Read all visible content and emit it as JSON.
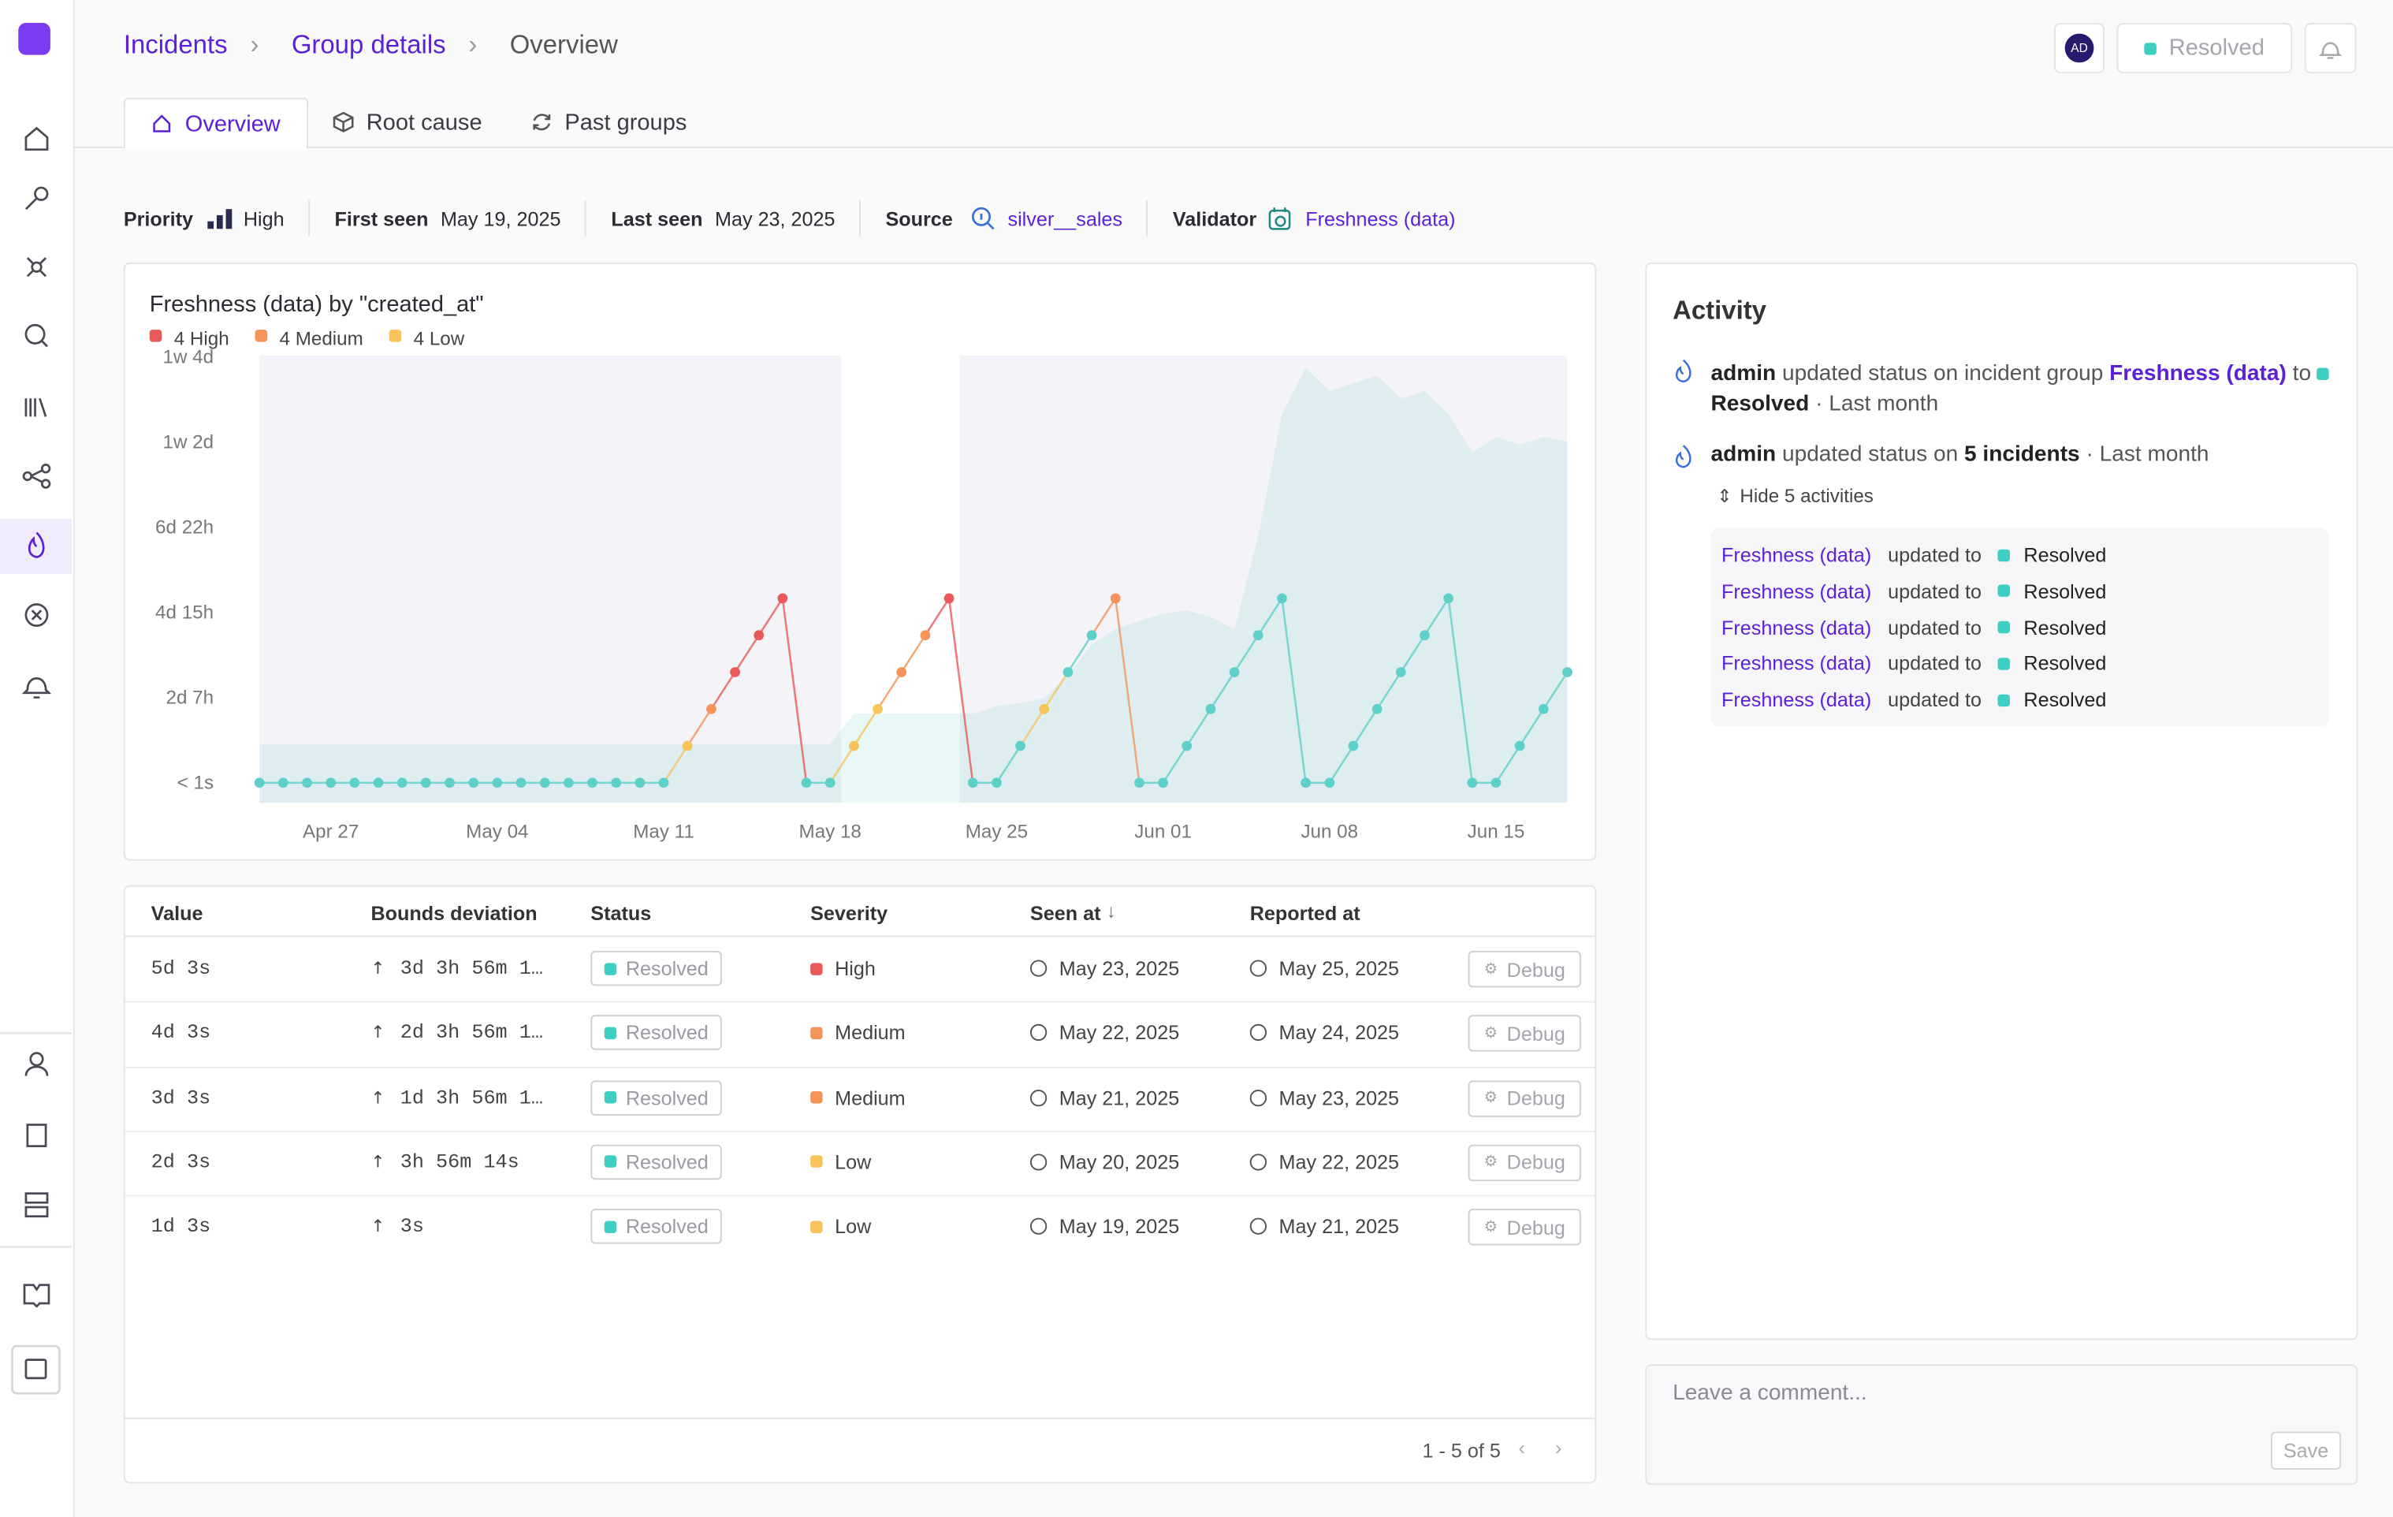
{
  "breadcrumb": [
    "Incidents",
    "Group details",
    "Overview"
  ],
  "header": {
    "avatar": "AD",
    "status": "Resolved"
  },
  "tabs": [
    "Overview",
    "Root cause",
    "Past groups"
  ],
  "meta": [
    {
      "label": "Priority",
      "value": "High"
    },
    {
      "label": "First seen",
      "value": "May 19, 2025"
    },
    {
      "label": "Last seen",
      "value": "May 23, 2025"
    },
    {
      "label": "Source",
      "value": "silver__sales"
    },
    {
      "label": "Validator",
      "value": "Freshness (data)"
    }
  ],
  "chart_data": {
    "type": "line",
    "title": "Freshness (data) by \"created_at\"",
    "legend": [
      {
        "name": "4 High",
        "color": "#e85a5a"
      },
      {
        "name": "4 Medium",
        "color": "#f4935a"
      },
      {
        "name": "4 Low",
        "color": "#f7c35a"
      }
    ],
    "x": [
      "Apr 24",
      "Apr 25",
      "Apr 26",
      "Apr 27",
      "Apr 28",
      "Apr 29",
      "Apr 30",
      "May 01",
      "May 02",
      "May 03",
      "May 04",
      "May 05",
      "May 06",
      "May 07",
      "May 08",
      "May 09",
      "May 10",
      "May 11",
      "May 12",
      "May 13",
      "May 14",
      "May 15",
      "May 16",
      "May 17",
      "May 18",
      "May 19",
      "May 20",
      "May 21",
      "May 22",
      "May 23",
      "May 24",
      "May 25",
      "May 26",
      "May 27",
      "May 28",
      "May 29",
      "May 30",
      "May 31",
      "Jun 01",
      "Jun 02",
      "Jun 03",
      "Jun 04",
      "Jun 05",
      "Jun 06",
      "Jun 07",
      "Jun 08",
      "Jun 09",
      "Jun 10",
      "Jun 11",
      "Jun 12",
      "Jun 13",
      "Jun 14",
      "Jun 15",
      "Jun 16",
      "Jun 17",
      "Jun 18"
    ],
    "series": [
      {
        "color": "#5fd0c8",
        "values": [
          0,
          0,
          0,
          0,
          0,
          0,
          0,
          0,
          0,
          0,
          0,
          0,
          0,
          0,
          0,
          0,
          0,
          0,
          24,
          48,
          72,
          96,
          120,
          0,
          0,
          24,
          48,
          72,
          96,
          120,
          0,
          0,
          24,
          48,
          72,
          96,
          120,
          0,
          0,
          24,
          48,
          72,
          96,
          120,
          0,
          0,
          24,
          48,
          72,
          96,
          120,
          0,
          0,
          24,
          48,
          72
        ],
        "point_colors": [
          "#5fd0c8",
          "#5fd0c8",
          "#5fd0c8",
          "#5fd0c8",
          "#5fd0c8",
          "#5fd0c8",
          "#5fd0c8",
          "#5fd0c8",
          "#5fd0c8",
          "#5fd0c8",
          "#5fd0c8",
          "#5fd0c8",
          "#5fd0c8",
          "#5fd0c8",
          "#5fd0c8",
          "#5fd0c8",
          "#5fd0c8",
          "#5fd0c8",
          "#f7c35a",
          "#f4935a",
          "#e85a5a",
          "#e85a5a",
          "#e85a5a",
          "#5fd0c8",
          "#5fd0c8",
          "#f7c35a",
          "#f7c35a",
          "#f4935a",
          "#f4935a",
          "#e85a5a",
          "#5fd0c8",
          "#5fd0c8",
          "#5fd0c8",
          "#f7c35a",
          "#5fd0c8",
          "#5fd0c8",
          "#f4935a",
          "#5fd0c8",
          "#5fd0c8",
          "#5fd0c8",
          "#5fd0c8",
          "#5fd0c8",
          "#5fd0c8",
          "#5fd0c8",
          "#5fd0c8",
          "#5fd0c8",
          "#5fd0c8",
          "#5fd0c8",
          "#5fd0c8",
          "#5fd0c8",
          "#5fd0c8",
          "#5fd0c8",
          "#5fd0c8",
          "#5fd0c8",
          "#5fd0c8",
          "#5fd0c8"
        ]
      },
      {
        "color": "#5ecdc4",
        "values": [
          25,
          25,
          25,
          25,
          25,
          25,
          25,
          25,
          25,
          25,
          25,
          25,
          25,
          25,
          25,
          25,
          25,
          25,
          25,
          25,
          25,
          25,
          25,
          25,
          25,
          45,
          45,
          45,
          45,
          45,
          45,
          50,
          52,
          55,
          70,
          90,
          100,
          105,
          110,
          112,
          108,
          100,
          160,
          240,
          270,
          255,
          260,
          265,
          250,
          255,
          240,
          215,
          225,
          220,
          225,
          222
        ]
      }
    ],
    "ylim": [
      -13,
      278
    ],
    "yticks": [
      {
        "value": 0,
        "label": "< 1s"
      },
      {
        "value": 55.4,
        "label": "2d 7h"
      },
      {
        "value": 110.8,
        "label": "4d 15h"
      },
      {
        "value": 166.2,
        "label": "6d 22h"
      },
      {
        "value": 221.6,
        "label": "1w 2d"
      },
      {
        "value": 277,
        "label": "1w 4d"
      }
    ],
    "xticks": [
      "Apr 27",
      "May 04",
      "May 11",
      "May 18",
      "May 25",
      "Jun 01",
      "Jun 08",
      "Jun 15"
    ],
    "grid": false
  },
  "table": {
    "columns": [
      "Value",
      "Bounds deviation",
      "Status",
      "Severity",
      "Seen at",
      "Reported at"
    ],
    "rows": [
      [
        "5d 3s",
        "3d 3h 56m 1…",
        "Resolved",
        "High",
        "May 23, 2025",
        "May 25, 2025",
        "Debug"
      ],
      [
        "4d 3s",
        "2d 3h 56m 1…",
        "Resolved",
        "Medium",
        "May 22, 2025",
        "May 24, 2025",
        "Debug"
      ],
      [
        "3d 3s",
        "1d 3h 56m 1…",
        "Resolved",
        "Medium",
        "May 21, 2025",
        "May 23, 2025",
        "Debug"
      ],
      [
        "2d 3s",
        "3h 56m 14s",
        "Resolved",
        "Low",
        "May 20, 2025",
        "May 22, 2025",
        "Debug"
      ],
      [
        "1d 3s",
        "3s",
        "Resolved",
        "Low",
        "May 19, 2025",
        "May 21, 2025",
        "Debug"
      ]
    ],
    "severity_colors": [
      "#e85a5a",
      "#f4935a",
      "#f4935a",
      "#f7c35a",
      "#f7c35a"
    ],
    "footer": "1 - 5 of 5"
  },
  "activity": {
    "title": "Activity",
    "item1": [
      "admin",
      "updated status on incident group",
      "Freshness (data)",
      "to",
      "Resolved",
      "· Last month"
    ],
    "item2": [
      "admin",
      "updated status on",
      "5 incidents",
      "· Last month"
    ],
    "toggle": "Hide 5 activities",
    "sub": [
      [
        "Freshness (data)",
        "updated to",
        "Resolved"
      ],
      [
        "Freshness (data)",
        "updated to",
        "Resolved"
      ],
      [
        "Freshness (data)",
        "updated to",
        "Resolved"
      ],
      [
        "Freshness (data)",
        "updated to",
        "Resolved"
      ],
      [
        "Freshness (data)",
        "updated to",
        "Resolved"
      ]
    ]
  },
  "comment": {
    "placeholder": "Leave a comment...",
    "save": "Save"
  }
}
